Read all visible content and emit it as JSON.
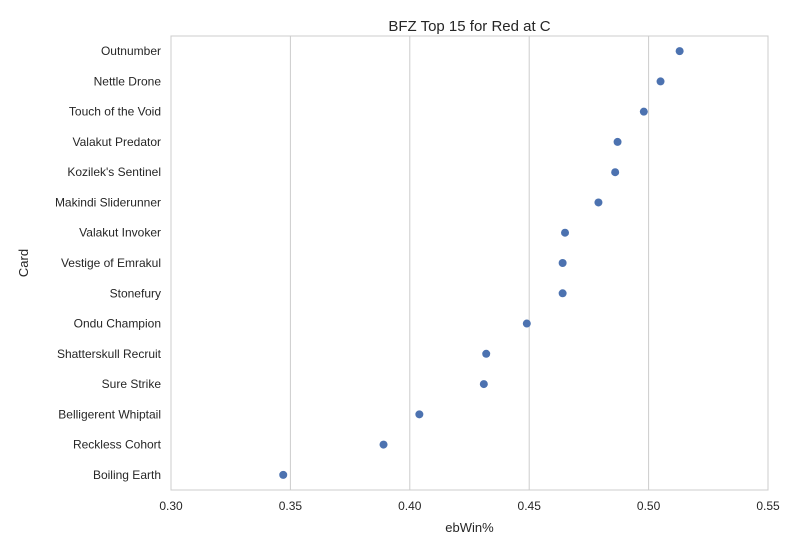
{
  "chart_data": {
    "type": "scatter",
    "title": "BFZ Top 15 for Red at C",
    "xlabel": "ebWin%",
    "ylabel": "Card",
    "xlim": [
      0.3,
      0.55
    ],
    "xticks": [
      "0.30",
      "0.35",
      "0.40",
      "0.45",
      "0.50",
      "0.55"
    ],
    "xtick_values": [
      0.3,
      0.35,
      0.4,
      0.45,
      0.5,
      0.55
    ],
    "grid": "vertical",
    "point_color": "#4c72b0",
    "grid_color": "#cccccc",
    "categories": [
      "Outnumber",
      "Nettle Drone",
      "Touch of the Void",
      "Valakut Predator",
      "Kozilek's Sentinel",
      "Makindi Sliderunner",
      "Valakut Invoker",
      "Vestige of Emrakul",
      "Stonefury",
      "Ondu Champion",
      "Shatterskull Recruit",
      "Sure Strike",
      "Belligerent Whiptail",
      "Reckless Cohort",
      "Boiling Earth"
    ],
    "values": [
      0.513,
      0.505,
      0.498,
      0.487,
      0.486,
      0.479,
      0.465,
      0.464,
      0.464,
      0.449,
      0.432,
      0.431,
      0.404,
      0.389,
      0.347
    ]
  }
}
